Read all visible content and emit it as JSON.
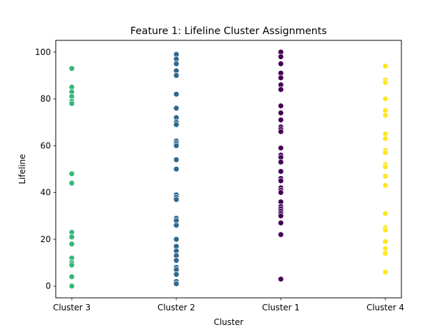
{
  "chart_data": {
    "type": "scatter",
    "title": "Feature 1: Lifeline Cluster Assignments",
    "xlabel": "Cluster",
    "ylabel": "Lifeline",
    "categories": [
      "Cluster 3",
      "Cluster 2",
      "Cluster 1",
      "Cluster 4"
    ],
    "ylim": [
      -5,
      105
    ],
    "yticks": [
      0,
      20,
      40,
      60,
      80,
      100
    ],
    "grid": false,
    "legend": "none",
    "series": [
      {
        "category": "Cluster 3",
        "color": "#35b779",
        "values": [
          93,
          85,
          83,
          81,
          79,
          78,
          48,
          44,
          23,
          21,
          18,
          12,
          10,
          9,
          4,
          0
        ]
      },
      {
        "category": "Cluster 2",
        "color": "#31688e",
        "values": [
          99,
          97,
          95,
          92,
          90,
          82,
          76,
          72,
          70,
          69,
          62,
          61,
          60,
          54,
          50,
          39,
          38,
          37,
          29,
          28,
          26,
          20,
          17,
          15,
          13,
          11,
          8,
          7,
          5,
          2,
          1
        ]
      },
      {
        "category": "Cluster 1",
        "color": "#440154",
        "values": [
          100,
          98,
          95,
          91,
          89,
          86,
          84,
          77,
          74,
          71,
          68,
          67,
          66,
          59,
          56,
          55,
          53,
          49,
          46,
          45,
          42,
          41,
          40,
          36,
          34,
          33,
          32,
          31,
          30,
          27,
          22,
          3
        ]
      },
      {
        "category": "Cluster 4",
        "color": "#fde725",
        "values": [
          94,
          88,
          87,
          80,
          75,
          73,
          65,
          63,
          58,
          57,
          52,
          51,
          47,
          43,
          31,
          25,
          24,
          19,
          16,
          14,
          6
        ]
      }
    ]
  }
}
